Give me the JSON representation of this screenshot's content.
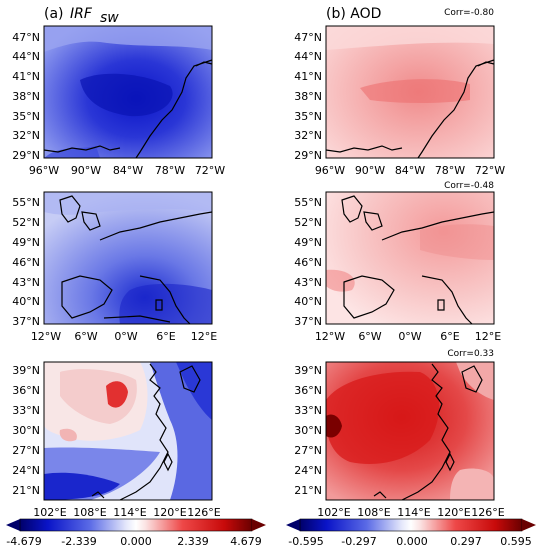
{
  "titles": {
    "left_prefix": "(a)",
    "left_symbol": "IRF",
    "left_subscript": "sw",
    "right": "(b) AOD"
  },
  "correlations": [
    "Corr=-0.80",
    "Corr=-0.48",
    "Corr=0.33"
  ],
  "rows": [
    {
      "region": "us",
      "y_ticks": [
        "47°N",
        "44°N",
        "41°N",
        "38°N",
        "35°N",
        "32°N",
        "29°N"
      ],
      "x_ticks": [
        "96°W",
        "90°W",
        "84°W",
        "78°W",
        "72°W"
      ]
    },
    {
      "region": "eu",
      "y_ticks": [
        "55°N",
        "52°N",
        "49°N",
        "46°N",
        "43°N",
        "40°N",
        "37°N"
      ],
      "x_ticks": [
        "12°W",
        "6°W",
        "0°W",
        "6°E",
        "12°E"
      ]
    },
    {
      "region": "ea",
      "y_ticks": [
        "39°N",
        "36°N",
        "33°N",
        "30°N",
        "27°N",
        "24°N",
        "21°N"
      ],
      "x_ticks": [
        "102°E",
        "108°E",
        "114°E",
        "120°E",
        "126°E"
      ]
    }
  ],
  "colorbars": {
    "left": {
      "ticks": [
        "-4.679",
        "-2.339",
        "0.000",
        "2.339",
        "4.679"
      ],
      "min": -4.679,
      "max": 4.679
    },
    "right": {
      "ticks": [
        "-0.595",
        "-0.297",
        "0.000",
        "0.297",
        "0.595"
      ],
      "min": -0.595,
      "max": 0.595
    }
  },
  "colors": {
    "deep_blue": "#0a14c8",
    "mid_blue": "#5a6ae6",
    "light_blue": "#c6ccf5",
    "white": "#ffffff",
    "light_red": "#f6c4c4",
    "mid_red": "#ee4848",
    "deep_red": "#b40a0a",
    "dark_red": "#6a0000"
  }
}
